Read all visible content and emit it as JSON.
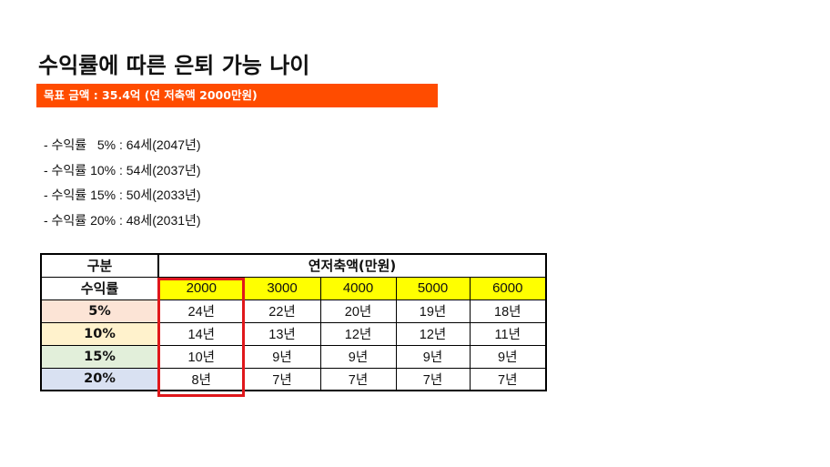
{
  "title": "수익률에 따른 은퇴 가능 나이",
  "banner": "목표 금액 : 35.4억 (연 저축액 2000만원)",
  "bullets": [
    "- 수익률   5% : 64세(2047년)",
    "- 수익률 10% : 54세(2037년)",
    "- 수익률 15% : 50세(2033년)",
    "- 수익률 20% : 48세(2031년)"
  ],
  "table": {
    "corner_label": "구분",
    "group_header": "연저축액(만원)",
    "row_header_label": "수익률",
    "columns": [
      "2000",
      "3000",
      "4000",
      "5000",
      "6000"
    ],
    "rows": [
      {
        "label": "5%",
        "color": "#fce4d6",
        "values": [
          "24년",
          "22년",
          "20년",
          "19년",
          "18년"
        ]
      },
      {
        "label": "10%",
        "color": "#fff2cc",
        "values": [
          "14년",
          "13년",
          "12년",
          "12년",
          "11년"
        ]
      },
      {
        "label": "15%",
        "color": "#e2efda",
        "values": [
          "10년",
          "9년",
          "9년",
          "9년",
          "9년"
        ]
      },
      {
        "label": "20%",
        "color": "#d9e1f2",
        "values": [
          "8년",
          "7년",
          "7년",
          "7년",
          "7년"
        ]
      }
    ],
    "highlight_color": "#ffff00",
    "highlight_box_color": "#e0171b"
  }
}
